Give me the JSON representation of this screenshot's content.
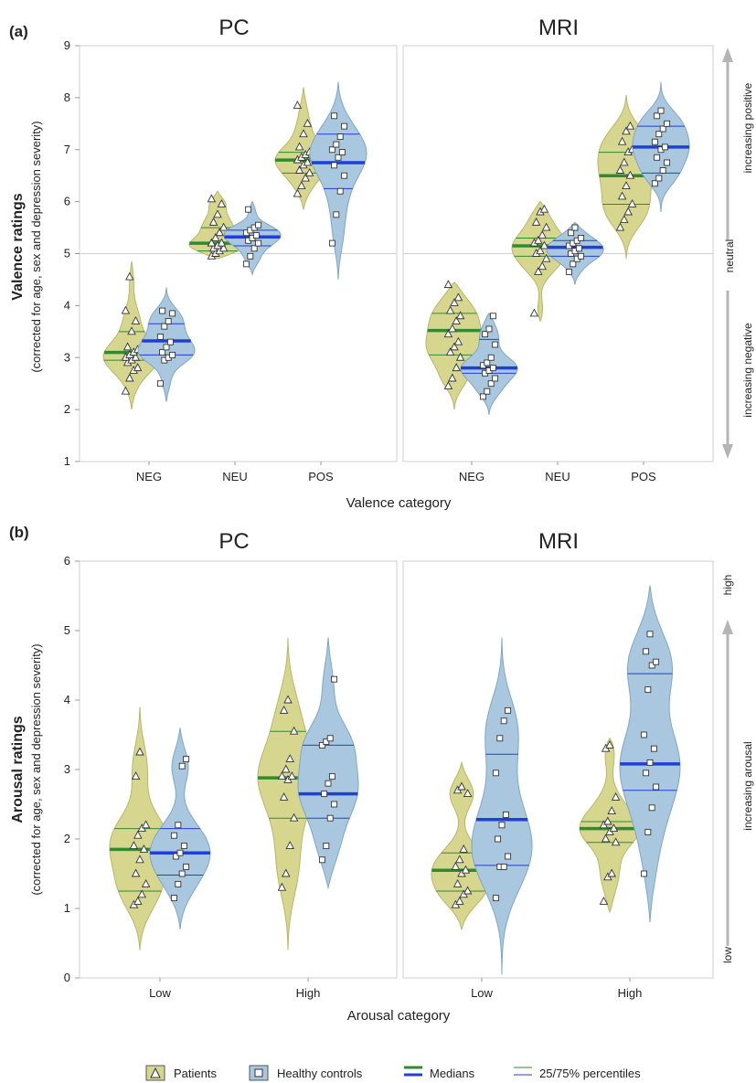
{
  "colors": {
    "patients_fill": "#d7d68e",
    "patients_edge": "#b8b768",
    "controls_fill": "#a9c8df",
    "controls_edge": "#7ea6c6",
    "median_patients": "#2e8b2e",
    "median_controls": "#1f3fd6",
    "side_arrow": "#b5b5b5"
  },
  "chart_data": [
    {
      "type": "violin",
      "panel_label": "(a)",
      "title": "PC",
      "xlabel": "Valence category",
      "ylabel": "Valence ratings",
      "ylabel_sub": "(corrected for age, sex and depression severity)",
      "ylim": [
        1,
        9
      ],
      "yticks": [
        1,
        2,
        3,
        4,
        5,
        6,
        7,
        8,
        9
      ],
      "categories": [
        "NEG",
        "NEU",
        "POS"
      ],
      "reference_line": 5,
      "series": [
        {
          "name": "Patients",
          "groups": [
            {
              "category": "NEG",
              "median": 3.1,
              "q25": 2.95,
              "q75": 3.5,
              "range": [
                2.0,
                4.85
              ],
              "points": [
                2.35,
                2.6,
                2.75,
                2.8,
                2.9,
                2.95,
                3.0,
                3.0,
                3.05,
                3.1,
                3.15,
                3.2,
                3.5,
                3.7,
                3.9,
                4.55
              ]
            },
            {
              "category": "NEU",
              "median": 5.2,
              "q25": 5.05,
              "q75": 5.5,
              "range": [
                4.9,
                6.2
              ],
              "points": [
                4.95,
                5.0,
                5.05,
                5.1,
                5.1,
                5.15,
                5.2,
                5.2,
                5.3,
                5.4,
                5.5,
                5.6,
                5.75,
                5.95,
                6.05
              ]
            },
            {
              "category": "POS",
              "median": 6.8,
              "q25": 6.55,
              "q75": 6.95,
              "range": [
                5.85,
                8.2
              ],
              "points": [
                6.15,
                6.3,
                6.45,
                6.55,
                6.6,
                6.7,
                6.75,
                6.8,
                6.85,
                6.9,
                6.95,
                7.05,
                7.3,
                7.5,
                7.85
              ]
            }
          ]
        },
        {
          "name": "Healthy controls",
          "groups": [
            {
              "category": "NEG",
              "median": 3.32,
              "q25": 3.05,
              "q75": 3.65,
              "range": [
                2.15,
                4.35
              ],
              "points": [
                2.5,
                2.95,
                3.0,
                3.05,
                3.1,
                3.2,
                3.3,
                3.4,
                3.6,
                3.7,
                3.85,
                3.9
              ]
            },
            {
              "category": "NEU",
              "median": 5.32,
              "q25": 5.15,
              "q75": 5.45,
              "range": [
                4.6,
                6.0
              ],
              "points": [
                4.8,
                4.95,
                5.1,
                5.2,
                5.25,
                5.3,
                5.35,
                5.4,
                5.45,
                5.5,
                5.55,
                5.85
              ]
            },
            {
              "category": "POS",
              "median": 6.75,
              "q25": 6.25,
              "q75": 7.3,
              "range": [
                4.5,
                8.3
              ],
              "points": [
                5.2,
                5.75,
                6.2,
                6.5,
                6.7,
                6.85,
                6.95,
                7.0,
                7.1,
                7.25,
                7.45,
                7.65
              ]
            }
          ]
        }
      ]
    },
    {
      "type": "violin",
      "title": "MRI",
      "ylim": [
        1,
        9
      ],
      "categories": [
        "NEG",
        "NEU",
        "POS"
      ],
      "reference_line": 5,
      "side_labels": {
        "top": "increasing positive",
        "middle": "neutral",
        "bottom": "increasing negative"
      },
      "series": [
        {
          "name": "Patients",
          "groups": [
            {
              "category": "NEG",
              "median": 3.52,
              "q25": 3.05,
              "q75": 3.85,
              "range": [
                2.0,
                4.45
              ],
              "points": [
                2.45,
                2.6,
                2.8,
                3.0,
                3.1,
                3.2,
                3.3,
                3.45,
                3.55,
                3.7,
                3.8,
                3.9,
                4.05,
                4.15,
                4.4
              ]
            },
            {
              "category": "NEU",
              "median": 5.15,
              "q25": 4.95,
              "q75": 5.3,
              "range": [
                3.7,
                6.0
              ],
              "points": [
                3.85,
                4.65,
                4.75,
                4.9,
                5.0,
                5.05,
                5.15,
                5.2,
                5.25,
                5.35,
                5.5,
                5.6,
                5.8,
                5.85
              ]
            },
            {
              "category": "POS",
              "median": 6.5,
              "q25": 5.95,
              "q75": 6.95,
              "range": [
                4.9,
                8.05
              ],
              "points": [
                5.5,
                5.65,
                5.8,
                5.95,
                6.1,
                6.3,
                6.5,
                6.6,
                6.75,
                6.95,
                7.0,
                7.15,
                7.35,
                7.45
              ]
            }
          ]
        },
        {
          "name": "Healthy controls",
          "groups": [
            {
              "category": "NEG",
              "median": 2.8,
              "q25": 2.7,
              "q75": 3.35,
              "range": [
                1.9,
                3.85
              ],
              "points": [
                2.25,
                2.35,
                2.5,
                2.6,
                2.7,
                2.75,
                2.8,
                2.85,
                2.9,
                3.0,
                3.25,
                3.45,
                3.55,
                3.8
              ]
            },
            {
              "category": "NEU",
              "median": 5.12,
              "q25": 4.95,
              "q75": 5.25,
              "range": [
                4.4,
                5.6
              ],
              "points": [
                4.65,
                4.8,
                4.9,
                4.95,
                5.0,
                5.05,
                5.1,
                5.15,
                5.2,
                5.25,
                5.3,
                5.4,
                5.5
              ]
            },
            {
              "category": "POS",
              "median": 7.05,
              "q25": 6.55,
              "q75": 7.45,
              "range": [
                5.8,
                8.3
              ],
              "points": [
                6.35,
                6.45,
                6.6,
                6.75,
                6.85,
                7.0,
                7.05,
                7.15,
                7.3,
                7.4,
                7.5,
                7.65,
                7.75
              ]
            }
          ]
        }
      ]
    },
    {
      "type": "violin",
      "panel_label": "(b)",
      "title": "PC",
      "xlabel": "Arousal category",
      "ylabel": "Arousal ratings",
      "ylabel_sub": "(corrected for age, sex and depression severity)",
      "ylim": [
        0,
        6
      ],
      "yticks": [
        0,
        1,
        2,
        3,
        4,
        5,
        6
      ],
      "categories": [
        "Low",
        "High"
      ],
      "series": [
        {
          "name": "Patients",
          "groups": [
            {
              "category": "Low",
              "median": 1.85,
              "q25": 1.25,
              "q75": 2.15,
              "range": [
                0.4,
                3.9
              ],
              "points": [
                1.05,
                1.1,
                1.2,
                1.35,
                1.5,
                1.7,
                1.85,
                1.9,
                2.05,
                2.15,
                2.2,
                2.9,
                3.25
              ]
            },
            {
              "category": "High",
              "median": 2.88,
              "q25": 2.3,
              "q75": 3.55,
              "range": [
                0.4,
                4.9
              ],
              "points": [
                1.3,
                1.5,
                1.9,
                2.3,
                2.6,
                2.85,
                2.9,
                2.9,
                3.0,
                3.15,
                3.55,
                3.85,
                4.0
              ]
            }
          ]
        },
        {
          "name": "Healthy controls",
          "groups": [
            {
              "category": "Low",
              "median": 1.8,
              "q25": 1.48,
              "q75": 2.15,
              "range": [
                0.7,
                3.6
              ],
              "points": [
                1.15,
                1.35,
                1.5,
                1.6,
                1.75,
                1.8,
                1.9,
                2.05,
                2.2,
                3.05,
                3.15
              ]
            },
            {
              "category": "High",
              "median": 2.65,
              "q25": 2.3,
              "q75": 3.35,
              "range": [
                1.3,
                4.9
              ],
              "points": [
                1.7,
                1.9,
                2.3,
                2.5,
                2.65,
                2.8,
                2.9,
                3.35,
                3.4,
                3.45,
                4.3
              ]
            }
          ]
        }
      ]
    },
    {
      "type": "violin",
      "title": "MRI",
      "ylim": [
        0,
        6
      ],
      "categories": [
        "Low",
        "High"
      ],
      "side_labels": {
        "top": "high",
        "middle": "increasing arousal",
        "bottom": "low"
      },
      "series": [
        {
          "name": "Patients",
          "groups": [
            {
              "category": "Low",
              "median": 1.55,
              "q25": 1.25,
              "q75": 1.8,
              "range": [
                0.7,
                3.1
              ],
              "points": [
                1.05,
                1.1,
                1.2,
                1.25,
                1.35,
                1.5,
                1.55,
                1.6,
                1.7,
                1.85,
                2.65,
                2.7,
                2.75
              ]
            },
            {
              "category": "High",
              "median": 2.15,
              "q25": 1.95,
              "q75": 2.25,
              "range": [
                0.95,
                3.45
              ],
              "points": [
                1.1,
                1.45,
                1.5,
                1.95,
                2.0,
                2.1,
                2.15,
                2.2,
                2.25,
                2.4,
                2.6,
                3.3,
                3.35
              ]
            }
          ]
        },
        {
          "name": "Healthy controls",
          "groups": [
            {
              "category": "Low",
              "median": 2.28,
              "q25": 1.62,
              "q75": 3.22,
              "range": [
                0.05,
                4.9
              ],
              "points": [
                1.15,
                1.6,
                1.6,
                1.75,
                2.0,
                2.2,
                2.35,
                2.95,
                3.45,
                3.7,
                3.85
              ]
            },
            {
              "category": "High",
              "median": 3.08,
              "q25": 2.7,
              "q75": 4.38,
              "range": [
                0.8,
                5.65
              ],
              "points": [
                1.5,
                2.1,
                2.45,
                2.75,
                2.95,
                3.1,
                3.3,
                3.5,
                4.15,
                4.5,
                4.55,
                4.7,
                4.95
              ]
            }
          ]
        }
      ]
    }
  ],
  "legend": [
    {
      "marker": "triangle",
      "label": "Patients"
    },
    {
      "marker": "square",
      "label": "Healthy controls"
    },
    {
      "marker": "median-lines",
      "label": "Medians"
    },
    {
      "marker": "percentile-lines",
      "label": "25/75% percentiles"
    }
  ]
}
